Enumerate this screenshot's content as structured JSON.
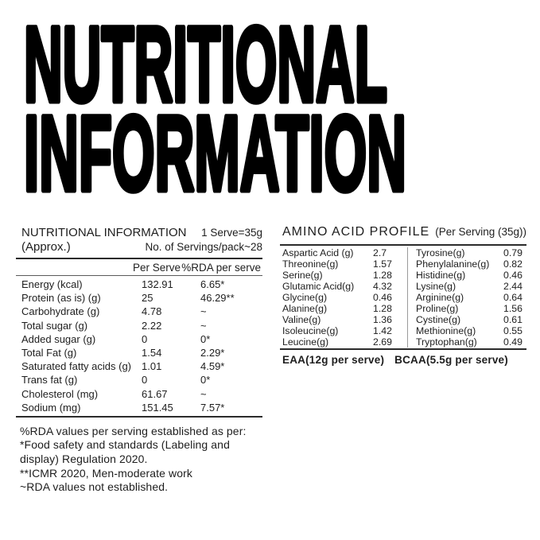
{
  "page_title": {
    "line1": "NUTRITIONAL",
    "line2": "INFORMATION"
  },
  "colors": {
    "text": "#1e1e1e",
    "title": "#000000",
    "rule_heavy": "#2b2b2b",
    "rule_light": "#9a9a9a"
  },
  "nutrition_table": {
    "title_line1": "NUTRITIONAL INFORMATION",
    "title_line2": "(Approx.)",
    "serve_info_line1": "1 Serve=35g",
    "serve_info_line2": "No. of Servings/pack~28",
    "columns": {
      "per_serve": "Per Serve",
      "rda": "%RDA per serve"
    },
    "rows": [
      {
        "label": "Energy (kcal)",
        "per_serve": "132.91",
        "rda": "6.65*"
      },
      {
        "label": "Protein (as is) (g)",
        "per_serve": "25",
        "rda": "46.29**"
      },
      {
        "label": "Carbohydrate (g)",
        "per_serve": "4.78",
        "rda": "~"
      },
      {
        "label": "Total sugar (g)",
        "per_serve": "2.22",
        "rda": "~"
      },
      {
        "label": "Added sugar (g)",
        "per_serve": "0",
        "rda": "0*"
      },
      {
        "label": "Total Fat (g)",
        "per_serve": "1.54",
        "rda": "2.29*"
      },
      {
        "label": "Saturated fatty acids (g)",
        "per_serve": "1.01",
        "rda": "4.59*"
      },
      {
        "label": "Trans fat (g)",
        "per_serve": "0",
        "rda": "0*"
      },
      {
        "label": "Cholesterol (mg)",
        "per_serve": "61.67",
        "rda": "~"
      },
      {
        "label": "Sodium (mg)",
        "per_serve": "151.45",
        "rda": "7.57*"
      }
    ],
    "footnotes": [
      "%RDA values per serving established as per:",
      "*Food safety and standards (Labeling and display) Regulation 2020.",
      "**ICMR 2020, Men-moderate work",
      "~RDA values not established."
    ]
  },
  "amino_table": {
    "title": "AMINO ACID PROFILE",
    "subtitle": "(Per Serving (35g))",
    "left_rows": [
      {
        "label": "Aspartic Acid (g)",
        "value": "2.7"
      },
      {
        "label": "Threonine(g)",
        "value": "1.57"
      },
      {
        "label": "Serine(g)",
        "value": "1.28"
      },
      {
        "label": "Glutamic Acid(g)",
        "value": "4.32"
      },
      {
        "label": "Glycine(g)",
        "value": "0.46"
      },
      {
        "label": "Alanine(g)",
        "value": "1.28"
      },
      {
        "label": "Valine(g)",
        "value": "1.36"
      },
      {
        "label": "Isoleucine(g)",
        "value": "1.42"
      },
      {
        "label": "Leucine(g)",
        "value": "2.69"
      }
    ],
    "right_rows": [
      {
        "label": "Tyrosine(g)",
        "value": "0.79"
      },
      {
        "label": "Phenylalanine(g)",
        "value": "0.82"
      },
      {
        "label": "Histidine(g)",
        "value": "0.46"
      },
      {
        "label": "Lysine(g)",
        "value": "2.44"
      },
      {
        "label": "Arginine(g)",
        "value": "0.64"
      },
      {
        "label": "Proline(g)",
        "value": "1.56"
      },
      {
        "label": "Cystine(g)",
        "value": "0.61"
      },
      {
        "label": "Methionine(g)",
        "value": "0.55"
      },
      {
        "label": "Tryptophan(g)",
        "value": "0.49"
      }
    ],
    "footer": {
      "eaa": "EAA(12g per serve)",
      "bcaa": "BCAA(5.5g per serve)"
    }
  }
}
